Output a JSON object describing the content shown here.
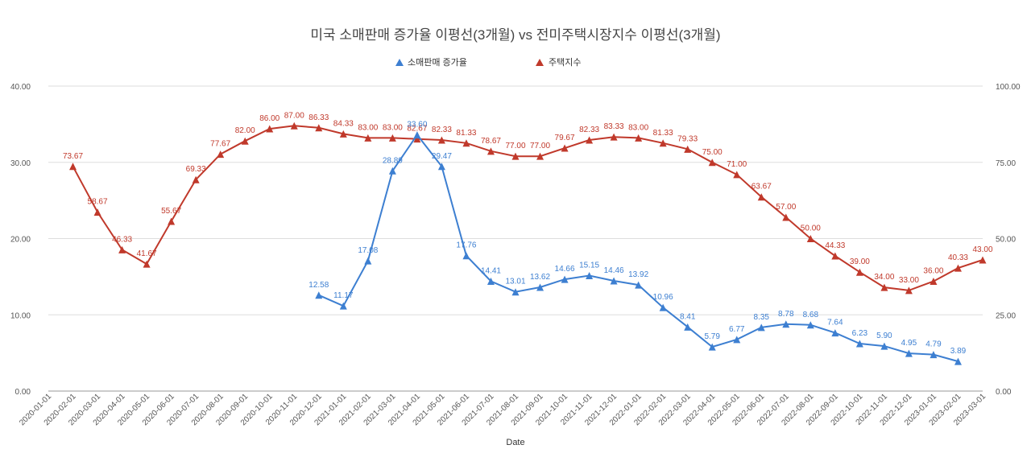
{
  "chart_data": {
    "type": "line",
    "title": "미국 소매판매 증가율 이평선(3개월) vs 전미주택시장지수 이평선(3개월)",
    "xlabel": "Date",
    "ylabel_left": "",
    "ylabel_right": "",
    "legend_position": "top",
    "grid": true,
    "ylim_left": [
      0,
      40
    ],
    "ylim_right": [
      0,
      100
    ],
    "yticks_left": [
      "0.00",
      "10.00",
      "20.00",
      "30.00",
      "40.00"
    ],
    "yticks_right": [
      "0.00",
      "25.00",
      "50.00",
      "75.00",
      "100.00"
    ],
    "categories": [
      "2020-01-01",
      "2020-02-01",
      "2020-03-01",
      "2020-04-01",
      "2020-05-01",
      "2020-06-01",
      "2020-07-01",
      "2020-08-01",
      "2020-09-01",
      "2020-10-01",
      "2020-11-01",
      "2020-12-01",
      "2021-01-01",
      "2021-02-01",
      "2021-03-01",
      "2021-04-01",
      "2021-05-01",
      "2021-06-01",
      "2021-07-01",
      "2021-08-01",
      "2021-09-01",
      "2021-10-01",
      "2021-11-01",
      "2021-12-01",
      "2022-01-01",
      "2022-02-01",
      "2022-03-01",
      "2022-04-01",
      "2022-05-01",
      "2022-06-01",
      "2022-07-01",
      "2022-08-01",
      "2022-09-01",
      "2022-10-01",
      "2022-11-01",
      "2022-12-01",
      "2023-01-01",
      "2023-02-01",
      "2023-03-01"
    ],
    "series": [
      {
        "name": "소매판매 증가율",
        "axis": "left",
        "color": "#3d7fd1",
        "values": [
          null,
          null,
          null,
          null,
          null,
          null,
          null,
          null,
          null,
          null,
          null,
          12.58,
          11.17,
          17.08,
          28.89,
          33.6,
          29.47,
          17.76,
          14.41,
          13.01,
          13.62,
          14.66,
          15.15,
          14.46,
          13.92,
          10.96,
          8.41,
          5.79,
          6.77,
          8.35,
          8.78,
          8.68,
          7.64,
          6.23,
          5.9,
          4.95,
          4.79,
          3.89,
          null
        ],
        "labels": [
          null,
          null,
          null,
          null,
          null,
          null,
          null,
          null,
          null,
          null,
          null,
          "12.58",
          "11.17",
          "17.08",
          "28.89",
          "33.60",
          "29.47",
          "17.76",
          "14.41",
          "13.01",
          "13.62",
          "14.66",
          "15.15",
          "14.46",
          "13.92",
          "10.96",
          "8.41",
          "5.79",
          "6.77",
          "8.35",
          "8.78",
          "8.68",
          "7.64",
          "6.23",
          "5.90",
          "4.95",
          "4.79",
          "3.89",
          null
        ]
      },
      {
        "name": "주택지수",
        "axis": "right",
        "color": "#c0392b",
        "values": [
          null,
          73.67,
          58.67,
          46.33,
          41.67,
          55.67,
          69.33,
          77.67,
          82.0,
          86.0,
          87.0,
          86.33,
          84.33,
          83.0,
          83.0,
          82.67,
          82.33,
          81.33,
          78.67,
          77.0,
          77.0,
          79.67,
          82.33,
          83.33,
          83.0,
          81.33,
          79.33,
          75.0,
          71.0,
          63.67,
          57.0,
          50.0,
          44.33,
          39.0,
          34.0,
          33.0,
          36.0,
          40.33,
          43.0
        ],
        "labels": [
          null,
          "73.67",
          "58.67",
          "46.33",
          "41.67",
          "55.67",
          "69.33",
          "77.67",
          "82.00",
          "86.00",
          "87.00",
          "86.33",
          "84.33",
          "83.00",
          "83.00",
          "82.67",
          "82.33",
          "81.33",
          "78.67",
          "77.00",
          "77.00",
          "79.67",
          "82.33",
          "83.33",
          "83.00",
          "81.33",
          "79.33",
          "75.00",
          "71.00",
          "63.67",
          "57.00",
          "50.00",
          "44.33",
          "39.00",
          "34.00",
          "33.00",
          "36.00",
          "40.33",
          "43.00"
        ]
      }
    ]
  },
  "colors": {
    "grid": "#dddddd",
    "axis": "#999999"
  }
}
